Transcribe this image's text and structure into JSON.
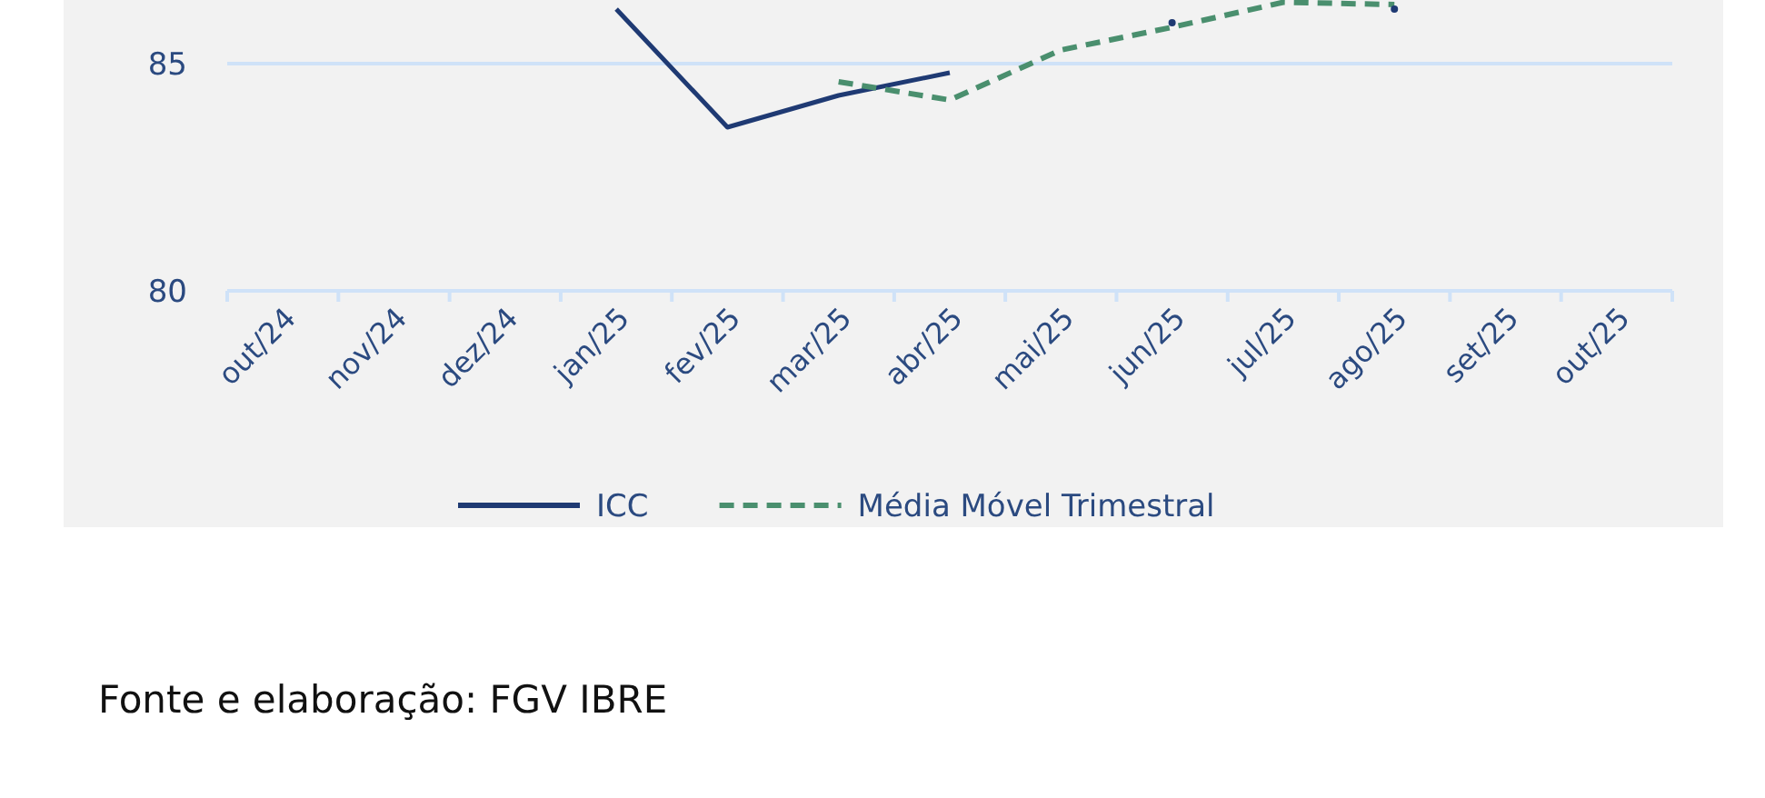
{
  "chart_data": {
    "type": "line",
    "categories": [
      "out/24",
      "nov/24",
      "dez/24",
      "jan/25",
      "fev/25",
      "mar/25",
      "abr/25",
      "mai/25",
      "jun/25",
      "jul/25",
      "ago/25",
      "set/25",
      "out/25"
    ],
    "series": [
      {
        "name": "ICC",
        "color": "#1f3a73",
        "line_style": "solid",
        "values": [
          null,
          null,
          null,
          86.2,
          83.6,
          84.3,
          84.8,
          null,
          85.9,
          null,
          86.2,
          null,
          null
        ]
      },
      {
        "name": "Média Móvel Trimestral",
        "color": "#4a8f6e",
        "line_style": "dashed",
        "values": [
          null,
          null,
          null,
          null,
          null,
          84.6,
          84.2,
          85.3,
          85.8,
          86.35,
          86.3,
          null,
          null
        ]
      }
    ],
    "ylim": [
      80,
      86.4
    ],
    "yticks": [
      80,
      85
    ],
    "ref_lines": [
      {
        "axis": "y",
        "value": 85,
        "color": "#cfe2f8"
      }
    ],
    "legend": "bottom",
    "marker": "none",
    "annotations": [
      "Fonte e elaboração: FGV IBRE"
    ]
  }
}
